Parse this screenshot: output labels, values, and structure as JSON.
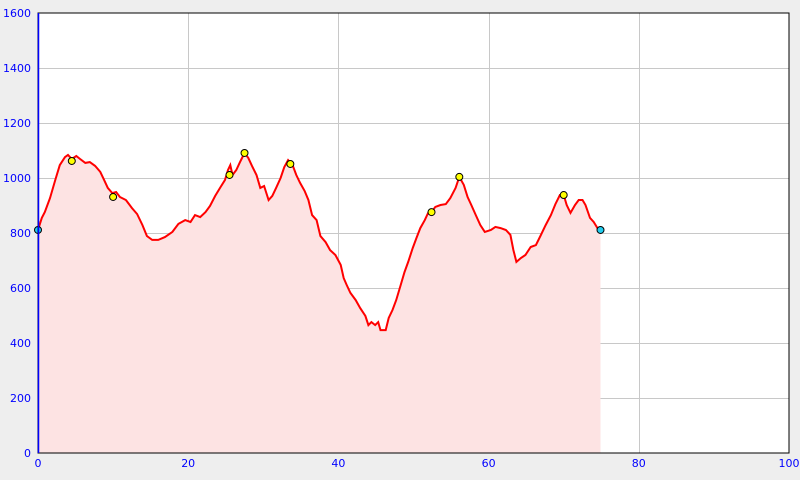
{
  "chart_data": {
    "type": "area",
    "title": "",
    "xlabel": "",
    "ylabel": "",
    "xlim": [
      0,
      100
    ],
    "ylim": [
      0,
      1600
    ],
    "x_ticks": [
      0,
      20,
      40,
      60,
      80,
      100
    ],
    "y_ticks": [
      0,
      200,
      400,
      600,
      800,
      1000,
      1200,
      1400,
      1600
    ],
    "grid": true,
    "colors": {
      "line": "#ff0000",
      "fill": "#fde3e3",
      "tick_text": "#0000ff",
      "marker": "#ffff00",
      "endpoint_marker": "#22ccee",
      "grid": "#c8c8c8",
      "background": "#eeeeee",
      "plot_background": "#ffffff"
    },
    "profile": [
      [
        0,
        811
      ],
      [
        0.5,
        855
      ],
      [
        0.9,
        876
      ],
      [
        1.6,
        927
      ],
      [
        2.3,
        993
      ],
      [
        2.9,
        1047
      ],
      [
        3.6,
        1076
      ],
      [
        4.0,
        1084
      ],
      [
        4.5,
        1069
      ],
      [
        5.1,
        1080
      ],
      [
        5.6,
        1069
      ],
      [
        6.3,
        1055
      ],
      [
        6.9,
        1058
      ],
      [
        7.6,
        1044
      ],
      [
        8.3,
        1022
      ],
      [
        8.8,
        993
      ],
      [
        9.3,
        964
      ],
      [
        9.9,
        945
      ],
      [
        10.4,
        949
      ],
      [
        10.9,
        931
      ],
      [
        11.7,
        920
      ],
      [
        12.5,
        891
      ],
      [
        13.2,
        869
      ],
      [
        13.9,
        829
      ],
      [
        14.5,
        789
      ],
      [
        15.2,
        775
      ],
      [
        16.0,
        775
      ],
      [
        16.9,
        785
      ],
      [
        17.9,
        804
      ],
      [
        18.7,
        833
      ],
      [
        19.6,
        847
      ],
      [
        20.3,
        840
      ],
      [
        20.9,
        865
      ],
      [
        21.6,
        858
      ],
      [
        22.3,
        876
      ],
      [
        22.9,
        898
      ],
      [
        23.6,
        935
      ],
      [
        24.3,
        967
      ],
      [
        24.9,
        993
      ],
      [
        25.3,
        1029
      ],
      [
        25.6,
        1047
      ],
      [
        25.9,
        1011
      ],
      [
        26.4,
        1029
      ],
      [
        26.9,
        1058
      ],
      [
        27.5,
        1091
      ],
      [
        28.0,
        1073
      ],
      [
        28.5,
        1044
      ],
      [
        29.1,
        1011
      ],
      [
        29.6,
        964
      ],
      [
        30.1,
        971
      ],
      [
        30.7,
        920
      ],
      [
        31.2,
        935
      ],
      [
        31.7,
        964
      ],
      [
        32.3,
        1000
      ],
      [
        32.8,
        1040
      ],
      [
        33.3,
        1065
      ],
      [
        33.9,
        1047
      ],
      [
        34.4,
        1011
      ],
      [
        34.9,
        982
      ],
      [
        35.5,
        953
      ],
      [
        36.0,
        920
      ],
      [
        36.5,
        865
      ],
      [
        37.1,
        847
      ],
      [
        37.6,
        789
      ],
      [
        38.3,
        767
      ],
      [
        38.9,
        738
      ],
      [
        39.6,
        720
      ],
      [
        40.3,
        684
      ],
      [
        40.7,
        636
      ],
      [
        41.1,
        611
      ],
      [
        41.6,
        582
      ],
      [
        42.3,
        556
      ],
      [
        42.9,
        527
      ],
      [
        43.6,
        498
      ],
      [
        44.0,
        465
      ],
      [
        44.4,
        476
      ],
      [
        44.9,
        465
      ],
      [
        45.3,
        476
      ],
      [
        45.6,
        447
      ],
      [
        46.3,
        447
      ],
      [
        46.7,
        491
      ],
      [
        47.2,
        520
      ],
      [
        47.7,
        556
      ],
      [
        48.3,
        611
      ],
      [
        48.8,
        658
      ],
      [
        49.3,
        695
      ],
      [
        49.9,
        745
      ],
      [
        50.4,
        782
      ],
      [
        50.9,
        818
      ],
      [
        51.5,
        847
      ],
      [
        52.0,
        876
      ],
      [
        52.4,
        876
      ],
      [
        52.9,
        895
      ],
      [
        53.6,
        902
      ],
      [
        54.3,
        905
      ],
      [
        54.9,
        927
      ],
      [
        55.6,
        964
      ],
      [
        56.1,
        1004
      ],
      [
        56.7,
        975
      ],
      [
        57.2,
        931
      ],
      [
        57.7,
        902
      ],
      [
        58.3,
        865
      ],
      [
        58.9,
        829
      ],
      [
        59.5,
        804
      ],
      [
        60.3,
        811
      ],
      [
        60.9,
        822
      ],
      [
        61.6,
        818
      ],
      [
        62.3,
        811
      ],
      [
        62.9,
        793
      ],
      [
        63.3,
        738
      ],
      [
        63.7,
        695
      ],
      [
        64.3,
        709
      ],
      [
        64.9,
        720
      ],
      [
        65.6,
        749
      ],
      [
        66.3,
        756
      ],
      [
        66.9,
        789
      ],
      [
        67.6,
        829
      ],
      [
        68.3,
        865
      ],
      [
        68.9,
        905
      ],
      [
        69.5,
        938
      ],
      [
        70.0,
        938
      ],
      [
        70.4,
        902
      ],
      [
        70.9,
        873
      ],
      [
        71.5,
        902
      ],
      [
        72.0,
        920
      ],
      [
        72.5,
        920
      ],
      [
        72.9,
        902
      ],
      [
        73.5,
        855
      ],
      [
        74.0,
        840
      ],
      [
        74.5,
        818
      ],
      [
        74.9,
        811
      ]
    ],
    "waypoints": [
      [
        4.5,
        1062
      ],
      [
        10.0,
        931
      ],
      [
        25.5,
        1011
      ],
      [
        27.5,
        1091
      ],
      [
        33.6,
        1051
      ],
      [
        52.4,
        876
      ],
      [
        56.1,
        1004
      ],
      [
        70.0,
        938
      ]
    ],
    "endpoints": [
      [
        0,
        811
      ],
      [
        74.9,
        811
      ]
    ]
  }
}
